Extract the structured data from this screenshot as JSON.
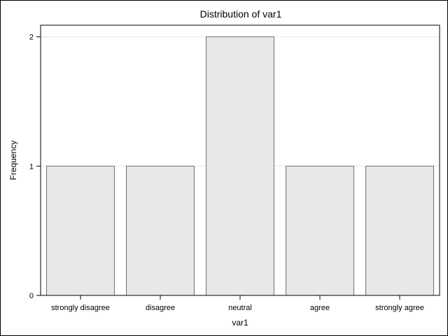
{
  "chart_data": {
    "type": "bar",
    "title": "Distribution of var1",
    "xlabel": "var1",
    "ylabel": "Frequency",
    "categories": [
      "strongly disagree",
      "disagree",
      "neutral",
      "agree",
      "strongly agree"
    ],
    "values": [
      1,
      1,
      2,
      1,
      1
    ],
    "ylim": [
      0,
      2.09
    ],
    "yticks": [
      0,
      1,
      2
    ],
    "grid": true,
    "legend": "none",
    "colors": {
      "bar_fill": "#e8e8e8",
      "bar_stroke": "#707070",
      "grid": "#e6e6e6",
      "axis": "#000000"
    }
  }
}
